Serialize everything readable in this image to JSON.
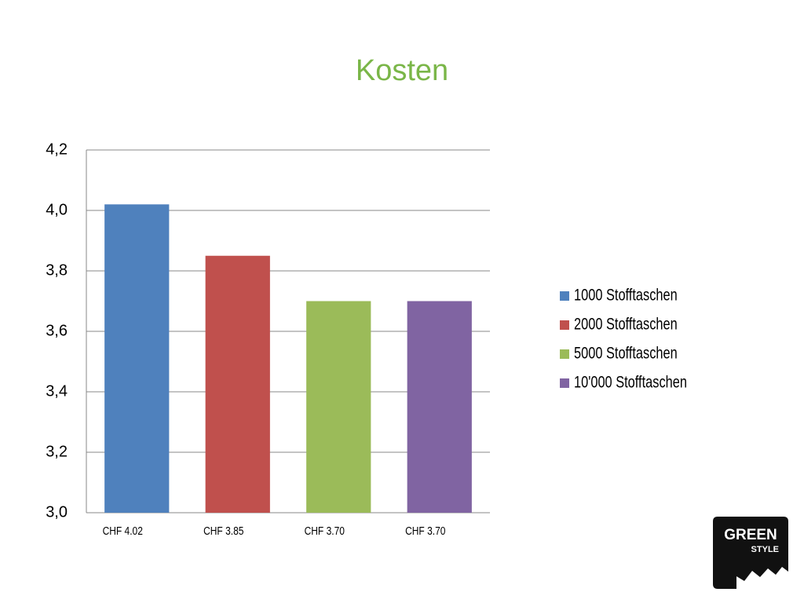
{
  "chart_data": {
    "type": "bar",
    "title": "Kosten",
    "categories": [
      "CHF 4.02",
      "CHF 3.85",
      "CHF 3.70",
      "CHF 3.70"
    ],
    "values": [
      4.02,
      3.85,
      3.7,
      3.7
    ],
    "colors": [
      "#4f81bd",
      "#c0504d",
      "#9bbb59",
      "#8064a2"
    ],
    "legend": [
      "1000 Stofftaschen",
      "2000 Stofftaschen",
      "5000 Stofftaschen",
      "10'000 Stofftaschen"
    ],
    "legend_position": "right",
    "ylim": [
      3.0,
      4.2
    ],
    "yticks": [
      {
        "value": 3.0,
        "label": "3,0"
      },
      {
        "value": 3.2,
        "label": "3,2"
      },
      {
        "value": 3.4,
        "label": "3,4"
      },
      {
        "value": 3.6,
        "label": "3,6"
      },
      {
        "value": 3.8,
        "label": "3,8"
      },
      {
        "value": 4.0,
        "label": "4,0"
      },
      {
        "value": 4.2,
        "label": "4,2"
      }
    ],
    "grid": true
  },
  "logo": {
    "line1": "GREEN",
    "line2": "STYLE"
  }
}
